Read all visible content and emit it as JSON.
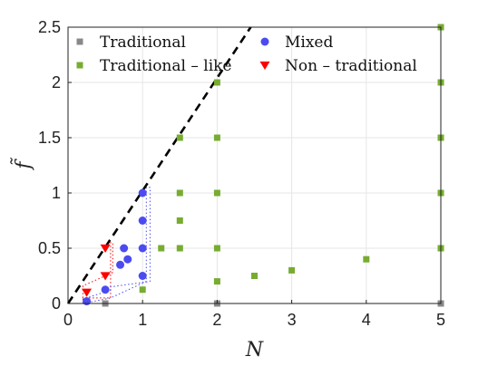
{
  "chart_data": {
    "type": "scatter",
    "title": "",
    "xlabel": "N",
    "ylabel": "f̃",
    "xlim": [
      0,
      5
    ],
    "ylim": [
      0,
      2.5
    ],
    "grid": true,
    "legend_placement": "top",
    "x_ticks": [
      "0",
      "1",
      "2",
      "3",
      "4",
      "5"
    ],
    "y_ticks": [
      "0",
      "0.5",
      "1",
      "1.5",
      "2",
      "2.5"
    ],
    "series": [
      {
        "name": "Traditional",
        "marker": "square",
        "color": "#888888",
        "points": [
          [
            0.5,
            0
          ],
          [
            2,
            0
          ],
          [
            5,
            0
          ]
        ]
      },
      {
        "name": "Traditional – like",
        "marker": "square",
        "color": "#77AC30",
        "points": [
          [
            1,
            0.125
          ],
          [
            1.25,
            0.5
          ],
          [
            1.5,
            0.5
          ],
          [
            1.5,
            0.75
          ],
          [
            1.5,
            1.0
          ],
          [
            1.5,
            1.5
          ],
          [
            2,
            0.2
          ],
          [
            2,
            0.5
          ],
          [
            2,
            1.0
          ],
          [
            2,
            1.5
          ],
          [
            2,
            2.0
          ],
          [
            2.5,
            0.25
          ],
          [
            3,
            0.3
          ],
          [
            4,
            0.4
          ],
          [
            5,
            0.5
          ],
          [
            5,
            1.0
          ],
          [
            5,
            1.5
          ],
          [
            5,
            2.0
          ],
          [
            5,
            2.5
          ]
        ]
      },
      {
        "name": "Mixed",
        "marker": "circle",
        "color": "#4B4BF0",
        "points": [
          [
            0.25,
            0.02
          ],
          [
            0.5,
            0.125
          ],
          [
            0.7,
            0.35
          ],
          [
            0.75,
            0.5
          ],
          [
            0.8,
            0.4
          ],
          [
            1,
            0.25
          ],
          [
            1,
            0.5
          ],
          [
            1,
            0.75
          ],
          [
            1,
            1.0
          ]
        ]
      },
      {
        "name": "Non – traditional",
        "marker": "triangle-down",
        "color": "#FF0000",
        "points": [
          [
            0.25,
            0.1
          ],
          [
            0.5,
            0.25
          ],
          [
            0.5,
            0.5
          ]
        ]
      }
    ],
    "reference_line": {
      "style": "dashed",
      "color": "#000000",
      "x": [
        0,
        2.45
      ],
      "y": [
        0,
        2.5
      ]
    },
    "outlines": [
      {
        "color": "#FF0000",
        "style": "dotted",
        "points": [
          [
            0.2,
            0.05
          ],
          [
            0.2,
            0.16
          ],
          [
            0.6,
            0.28
          ],
          [
            0.6,
            0.55
          ],
          [
            0.57,
            0.55
          ],
          [
            0.57,
            0.05
          ]
        ]
      },
      {
        "color": "#4B4BF0",
        "style": "dotted",
        "points": [
          [
            0.2,
            0.0
          ],
          [
            0.2,
            0.04
          ],
          [
            0.57,
            0.12
          ],
          [
            0.57,
            0.15
          ],
          [
            1.1,
            0.2
          ],
          [
            1.1,
            1.05
          ],
          [
            1.05,
            1.05
          ],
          [
            1.05,
            0.2
          ],
          [
            0.57,
            0.05
          ]
        ]
      }
    ],
    "axis_color": "#222222",
    "grid_color": "#e6e6e6"
  }
}
